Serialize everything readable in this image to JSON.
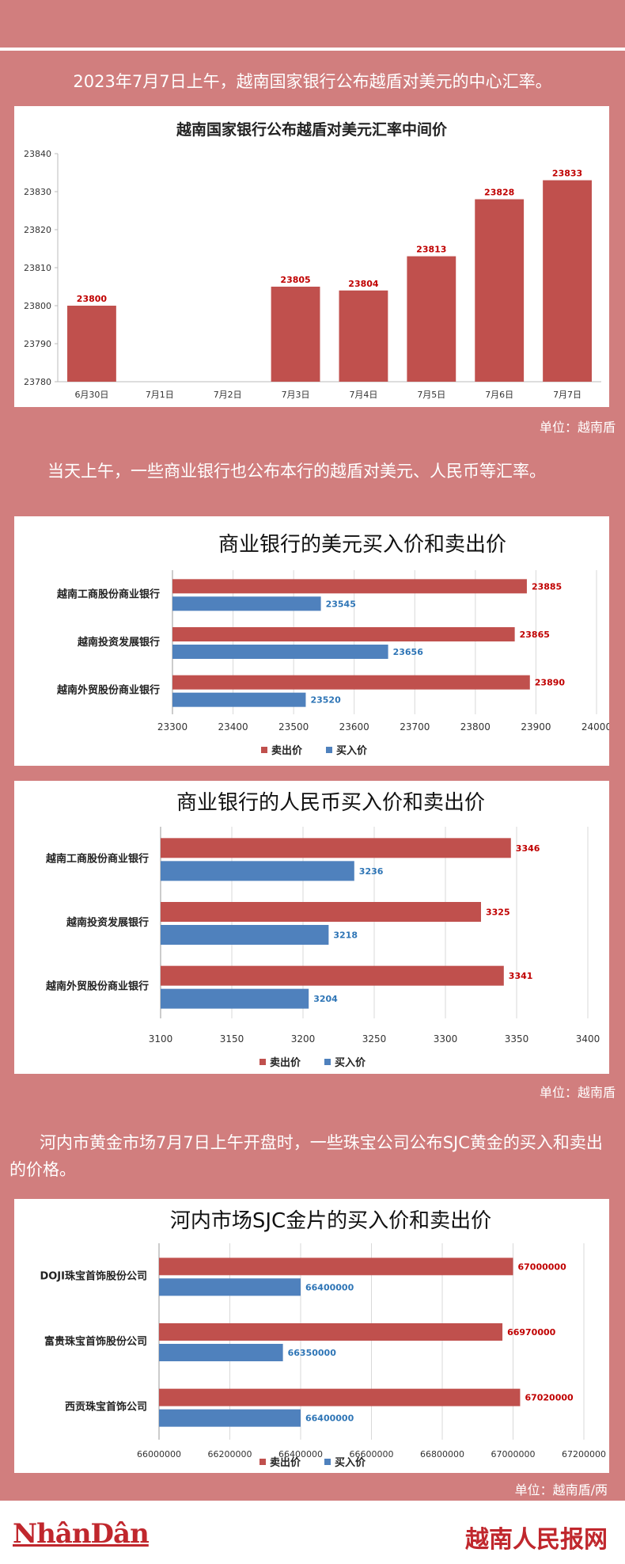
{
  "captions": {
    "c1": "2023年7月7日上午，越南国家银行公布越盾对美元的中心汇率。",
    "c2": "当天上午，一些商业银行也公布本行的越盾对美元、人民币等汇率。",
    "c3": "河内市黄金市场7月7日上午开盘时，一些珠宝公司公布SJC黄金的买入和卖出的价格。"
  },
  "units": {
    "u1": "单位：越南盾",
    "u2": "单位：越南盾",
    "u3": "单位：越南盾/两"
  },
  "footer": {
    "logo_left": "NhânDân",
    "logo_right": "越南人民报网"
  },
  "colors": {
    "sell": "#c0504d",
    "buy": "#4f81bd",
    "sell_label": "#c00000",
    "buy_label": "#2e75b6"
  },
  "chart_data": [
    {
      "type": "bar",
      "title": "越南国家银行公布越盾对美元汇率中间价",
      "categories": [
        "6月30日",
        "7月1日",
        "7月2日",
        "7月3日",
        "7月4日",
        "7月5日",
        "7月6日",
        "7月7日"
      ],
      "values": [
        23800,
        null,
        null,
        23805,
        23804,
        23813,
        23828,
        23833
      ],
      "ylim": [
        23780,
        23840
      ],
      "yticks": [
        23780,
        23790,
        23800,
        23810,
        23820,
        23830,
        23840
      ],
      "grid": false,
      "legend": "none"
    },
    {
      "type": "bar",
      "orientation": "horizontal",
      "title": "商业银行的美元买入价和卖出价",
      "categories": [
        "越南工商股份商业银行",
        "越南投资发展银行",
        "越南外贸股份商业银行"
      ],
      "series": [
        {
          "name": "卖出价",
          "values": [
            23885,
            23865,
            23890
          ]
        },
        {
          "name": "买入价",
          "values": [
            23545,
            23656,
            23520
          ]
        }
      ],
      "xlim": [
        23300,
        24000
      ],
      "xticks": [
        23300,
        23400,
        23500,
        23600,
        23700,
        23800,
        23900,
        24000
      ],
      "grid": true,
      "legend": "bottom"
    },
    {
      "type": "bar",
      "orientation": "horizontal",
      "title": "商业银行的人民币买入价和卖出价",
      "categories": [
        "越南工商股份商业银行",
        "越南投资发展银行",
        "越南外贸股份商业银行"
      ],
      "series": [
        {
          "name": "卖出价",
          "values": [
            3346,
            3325,
            3341
          ]
        },
        {
          "name": "买入价",
          "values": [
            3236,
            3218,
            3204
          ]
        }
      ],
      "xlim": [
        3100,
        3400
      ],
      "xticks": [
        3100,
        3150,
        3200,
        3250,
        3300,
        3350,
        3400
      ],
      "grid": true,
      "legend": "bottom"
    },
    {
      "type": "bar",
      "orientation": "horizontal",
      "title": "河内市场SJC金片的买入价和卖出价",
      "categories": [
        "DOJI珠宝首饰股份公司",
        "富贵珠宝首饰股份公司",
        "西贡珠宝首饰公司"
      ],
      "series": [
        {
          "name": "卖出价",
          "values": [
            67000000,
            66970000,
            67020000
          ]
        },
        {
          "name": "买入价",
          "values": [
            66400000,
            66350000,
            66400000
          ]
        }
      ],
      "xlim": [
        66000000,
        67200000
      ],
      "xticks": [
        66000000,
        66200000,
        66400000,
        66600000,
        66800000,
        67000000,
        67200000
      ],
      "grid": true,
      "legend": "bottom"
    }
  ]
}
